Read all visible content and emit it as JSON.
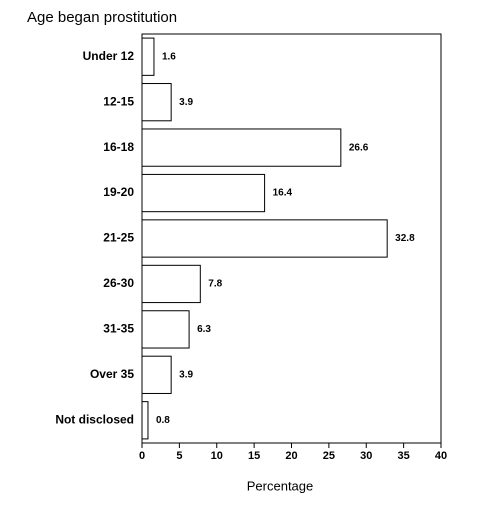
{
  "chart_data": {
    "type": "bar",
    "orientation": "horizontal",
    "title": "Age began prostitution",
    "x_label": "Percentage",
    "categories": [
      "Under 12",
      "12-15",
      "16-18",
      "19-20",
      "21-25",
      "26-30",
      "31-35",
      "Over 35",
      "Not disclosed"
    ],
    "values": [
      1.6,
      3.9,
      26.6,
      16.4,
      32.8,
      7.8,
      6.3,
      3.9,
      0.8
    ],
    "color": "#ffffff",
    "edge_color": "#000000",
    "xlim": [
      0,
      40
    ],
    "xticks": [
      0,
      5,
      10,
      15,
      20,
      25,
      30,
      35,
      40
    ],
    "grid": false
  }
}
